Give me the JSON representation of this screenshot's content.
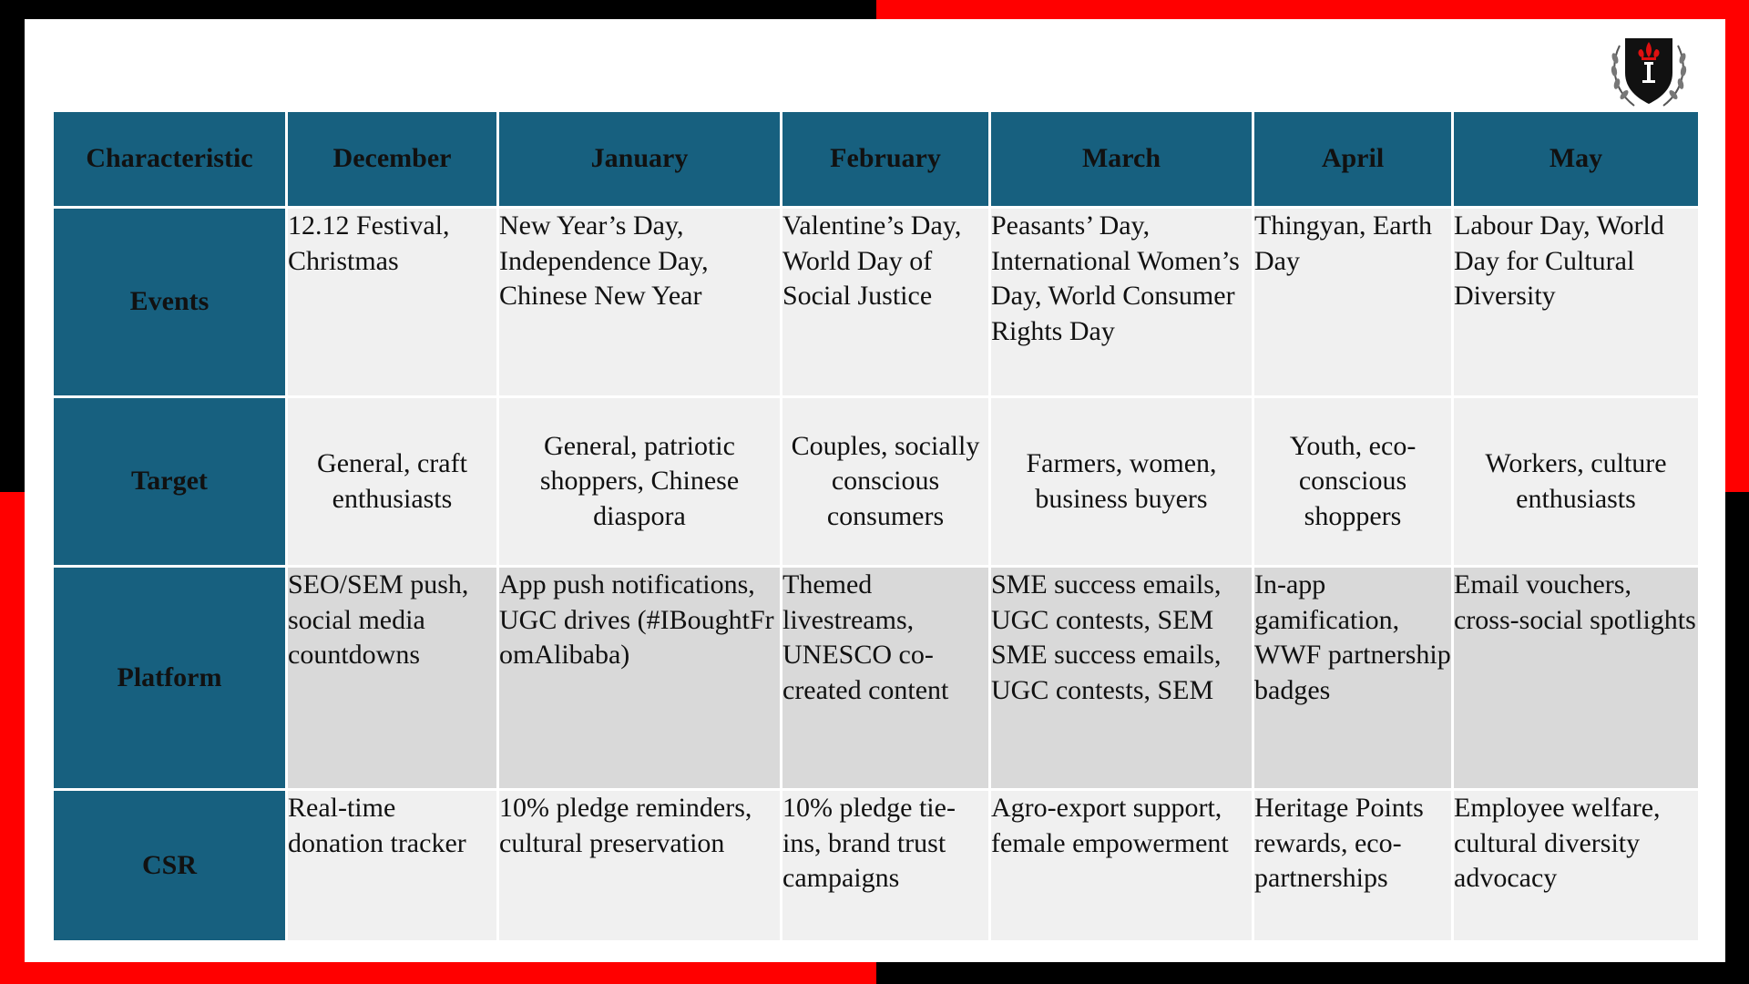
{
  "colors": {
    "header_bg": "#17607f",
    "header_text": "#ffffff",
    "row_light": "#f0f0f0",
    "row_dark": "#d9d9d9",
    "frame_red": "#ff0000",
    "frame_black": "#000000"
  },
  "logo": {
    "icon": "crest-shield-icon"
  },
  "table": {
    "columns": [
      "Characteristic",
      "December",
      "January",
      "February",
      "March",
      "April",
      "May"
    ],
    "rows": [
      {
        "label": "Events",
        "cells": [
          "12.12 Festival, Christmas",
          "New Year’s Day, Independence Day, Chinese New Year",
          "Valentine’s Day, World Day of Social Justice",
          "Peasants’ Day, International Women’s Day, World Consumer Rights Day",
          "Thingyan, Earth Day",
          "Labour Day, World Day for Cultural Diversity"
        ]
      },
      {
        "label": "Target",
        "cells": [
          "General, craft enthusiasts",
          "General, patriotic shoppers, Chinese diaspora",
          "Couples, socially conscious consumers",
          "Farmers, women, business buyers",
          "Youth, eco-conscious shoppers",
          "Workers, culture enthusiasts"
        ]
      },
      {
        "label": "Platform",
        "cells": [
          "SEO/SEM push, social media countdowns",
          "App push notifications, UGC drives (#IBoughtFromAlibaba)",
          "Themed livestreams, UNESCO co-created content",
          "SME success emails, UGC contests, SEM SME success emails, UGC contests, SEM",
          "In-app gamification, WWF partnership badges",
          "Email vouchers, cross-social spotlights"
        ]
      },
      {
        "label": "CSR",
        "cells": [
          "Real-time donation tracker",
          "10% pledge reminders, cultural preservation",
          "10% pledge tie-ins, brand trust campaigns",
          "Agro-export support, female empowerment",
          "Heritage Points rewards, eco-partnerships",
          "Employee welfare, cultural diversity advocacy"
        ]
      }
    ]
  }
}
